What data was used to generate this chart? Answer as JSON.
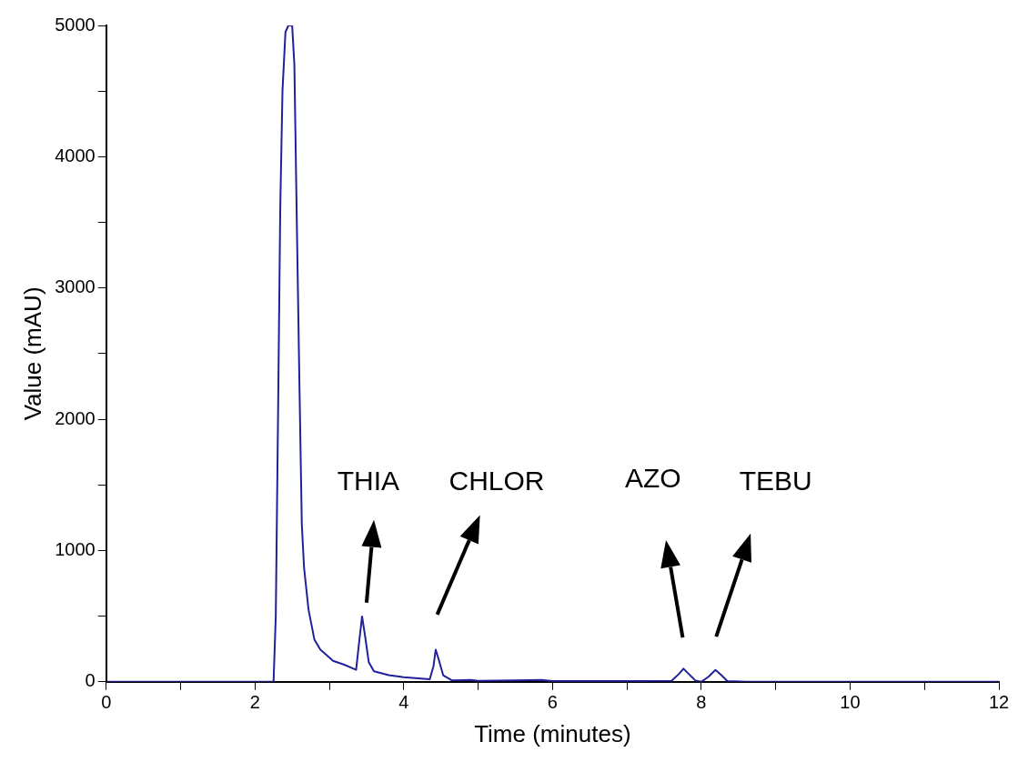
{
  "chart_data": {
    "type": "line",
    "xlabel": "Time (minutes)",
    "ylabel": "Value (mAU)",
    "xlim": [
      0,
      12
    ],
    "xticks": [
      0,
      {
        "value": 1,
        "label": null
      },
      2,
      {
        "value": 3,
        "label": null
      },
      4,
      {
        "value": 5,
        "label": null
      },
      6,
      {
        "value": 7,
        "label": null
      },
      8,
      {
        "value": 9,
        "label": null
      },
      10,
      {
        "value": 11,
        "label": null
      },
      12
    ],
    "ylim": [
      0,
      5000
    ],
    "yticks": [
      0,
      {
        "value": 500,
        "label": null
      },
      1000,
      {
        "value": 1500,
        "label": null
      },
      2000,
      {
        "value": 2500,
        "label": null
      },
      3000,
      {
        "value": 3500,
        "label": null
      },
      4000,
      {
        "value": 4500,
        "label": null
      },
      5000
    ],
    "grid": false,
    "legend": false,
    "marker": "none",
    "line_style": "solid",
    "series": [
      {
        "color": "#20209a",
        "x": [
          0,
          2.25,
          2.28,
          2.31,
          2.34,
          2.37,
          2.41,
          2.45,
          2.5,
          2.53,
          2.56,
          2.6,
          2.63,
          2.66,
          2.72,
          2.8,
          2.88,
          2.95,
          3.05,
          3.2,
          3.36,
          3.4,
          3.44,
          3.48,
          3.53,
          3.6,
          3.8,
          4.0,
          4.35,
          4.4,
          4.43,
          4.47,
          4.53,
          4.65,
          4.9,
          5.0,
          5.5,
          5.85,
          6,
          7,
          7.6,
          7.7,
          7.76,
          7.83,
          7.92,
          8.0,
          8.1,
          8.19,
          8.27,
          8.35,
          8.6,
          12
        ],
        "values": [
          0,
          0,
          500,
          2000,
          3600,
          4500,
          4950,
          5000,
          5000,
          4700,
          3600,
          2200,
          1200,
          870,
          550,
          320,
          245,
          210,
          160,
          130,
          91,
          300,
          498,
          350,
          150,
          80,
          50,
          35,
          20,
          120,
          245,
          170,
          50,
          10,
          15,
          8,
          10,
          15,
          5,
          5,
          8,
          60,
          100,
          60,
          10,
          0,
          40,
          90,
          50,
          5,
          0,
          0
        ]
      }
    ],
    "annotations": [
      "THIA",
      "CHLOR",
      "AZO",
      "TEBU"
    ]
  }
}
